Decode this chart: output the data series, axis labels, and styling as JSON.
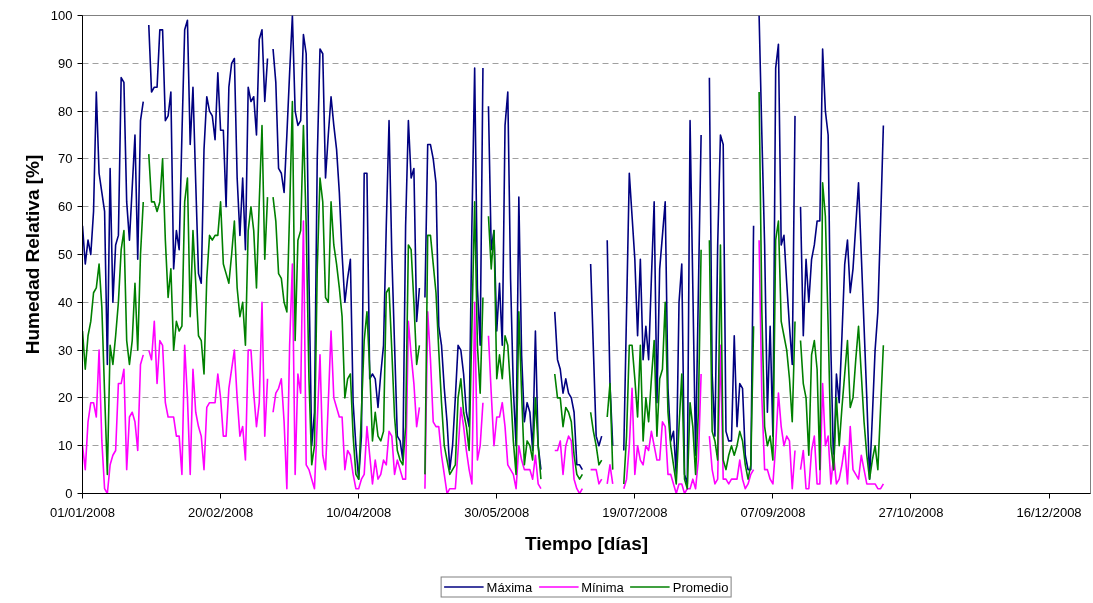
{
  "chart_data": {
    "type": "line",
    "xlabel": "Tiempo [días]",
    "ylabel": "Humedad Relativa [%]",
    "xlim": [
      "2008-01-01",
      "2008-12-31"
    ],
    "ylim": [
      0,
      100
    ],
    "xticks": [
      {
        "value": "2008-01-01",
        "label": "01/01/2008"
      },
      {
        "value": "2008-02-20",
        "label": "20/02/2008"
      },
      {
        "value": "2008-04-10",
        "label": "10/04/2008"
      },
      {
        "value": "2008-05-30",
        "label": "30/05/2008"
      },
      {
        "value": "2008-07-19",
        "label": "19/07/2008"
      },
      {
        "value": "2008-09-07",
        "label": "07/09/2008"
      },
      {
        "value": "2008-10-27",
        "label": "27/10/2008"
      },
      {
        "value": "2008-12-16",
        "label": "16/12/2008"
      }
    ],
    "yticks": [
      0,
      10,
      20,
      30,
      40,
      50,
      60,
      70,
      80,
      90,
      100
    ],
    "grid": "y",
    "legend": "bottom",
    "x": [
      "2008-01-01",
      "2008-01-02",
      "2008-01-03",
      "2008-01-04",
      "2008-01-05",
      "2008-01-06",
      "2008-01-07",
      "2008-01-08",
      "2008-01-09",
      "2008-01-10",
      "2008-01-11",
      "2008-01-12",
      "2008-01-13",
      "2008-01-14",
      "2008-01-15",
      "2008-01-16",
      "2008-01-17",
      "2008-01-18",
      "2008-01-19",
      "2008-01-20",
      "2008-01-21",
      "2008-01-22",
      "2008-01-23",
      "2008-01-24",
      "2008-01-25",
      "2008-01-26",
      "2008-01-27",
      "2008-01-28",
      "2008-01-29",
      "2008-01-30",
      "2008-01-31",
      "2008-02-01",
      "2008-02-02",
      "2008-02-03",
      "2008-02-04",
      "2008-02-05",
      "2008-02-06",
      "2008-02-07",
      "2008-02-08",
      "2008-02-09",
      "2008-02-10",
      "2008-02-11",
      "2008-02-12",
      "2008-02-13",
      "2008-02-14",
      "2008-02-15",
      "2008-02-16",
      "2008-02-17",
      "2008-02-18",
      "2008-02-19",
      "2008-02-20",
      "2008-02-21",
      "2008-02-22",
      "2008-02-23",
      "2008-02-24",
      "2008-02-25",
      "2008-02-26",
      "2008-02-27",
      "2008-02-28",
      "2008-02-29",
      "2008-03-01",
      "2008-03-02",
      "2008-03-03",
      "2008-03-04",
      "2008-03-05",
      "2008-03-06",
      "2008-03-07",
      "2008-03-08",
      "2008-03-09",
      "2008-03-10",
      "2008-03-11",
      "2008-03-12",
      "2008-03-13",
      "2008-03-14",
      "2008-03-15",
      "2008-03-16",
      "2008-03-17",
      "2008-03-18",
      "2008-03-19",
      "2008-03-20",
      "2008-03-21",
      "2008-03-22",
      "2008-03-23",
      "2008-03-24",
      "2008-03-25",
      "2008-03-26",
      "2008-03-27",
      "2008-03-28",
      "2008-03-29",
      "2008-03-30",
      "2008-03-31",
      "2008-04-01",
      "2008-04-02",
      "2008-04-03",
      "2008-04-04",
      "2008-04-05",
      "2008-04-06",
      "2008-04-07",
      "2008-04-08",
      "2008-04-09",
      "2008-04-10",
      "2008-04-11",
      "2008-04-12",
      "2008-04-13",
      "2008-04-14",
      "2008-04-15",
      "2008-04-16",
      "2008-04-17",
      "2008-04-18",
      "2008-04-19",
      "2008-04-20",
      "2008-04-21",
      "2008-04-22",
      "2008-04-23",
      "2008-04-24",
      "2008-04-25",
      "2008-04-26",
      "2008-04-27",
      "2008-04-28",
      "2008-04-29",
      "2008-04-30",
      "2008-05-01",
      "2008-05-02",
      "2008-05-03",
      "2008-05-04",
      "2008-05-05",
      "2008-05-06",
      "2008-05-07",
      "2008-05-08",
      "2008-05-09",
      "2008-05-10",
      "2008-05-11",
      "2008-05-12",
      "2008-05-13",
      "2008-05-14",
      "2008-05-15",
      "2008-05-16",
      "2008-05-17",
      "2008-05-18",
      "2008-05-19",
      "2008-05-20",
      "2008-05-21",
      "2008-05-22",
      "2008-05-23",
      "2008-05-24",
      "2008-05-25",
      "2008-05-26",
      "2008-05-27",
      "2008-05-28",
      "2008-05-29",
      "2008-05-30",
      "2008-05-31",
      "2008-06-01",
      "2008-06-02",
      "2008-06-03",
      "2008-06-04",
      "2008-06-05",
      "2008-06-06",
      "2008-06-07",
      "2008-06-08",
      "2008-06-09",
      "2008-06-10",
      "2008-06-11",
      "2008-06-12",
      "2008-06-13",
      "2008-06-14",
      "2008-06-15",
      "2008-06-16",
      "2008-06-17",
      "2008-06-18",
      "2008-06-19",
      "2008-06-20",
      "2008-06-21",
      "2008-06-22",
      "2008-06-23",
      "2008-06-24",
      "2008-06-25",
      "2008-06-26",
      "2008-06-27",
      "2008-06-28",
      "2008-06-29",
      "2008-06-30",
      "2008-07-01",
      "2008-07-02",
      "2008-07-03",
      "2008-07-04",
      "2008-07-05",
      "2008-07-06",
      "2008-07-07",
      "2008-07-08",
      "2008-07-09",
      "2008-07-10",
      "2008-07-11",
      "2008-07-12",
      "2008-07-13",
      "2008-07-14",
      "2008-07-15",
      "2008-07-16",
      "2008-07-17",
      "2008-07-18",
      "2008-07-19",
      "2008-07-20",
      "2008-07-21",
      "2008-07-22",
      "2008-07-23",
      "2008-07-24",
      "2008-07-25",
      "2008-07-26",
      "2008-07-27",
      "2008-07-28",
      "2008-07-29",
      "2008-07-30",
      "2008-07-31",
      "2008-08-01",
      "2008-08-02",
      "2008-08-03",
      "2008-08-04",
      "2008-08-05",
      "2008-08-06",
      "2008-08-07",
      "2008-08-08",
      "2008-08-09",
      "2008-08-10",
      "2008-08-11",
      "2008-08-12",
      "2008-08-13",
      "2008-08-14",
      "2008-08-15",
      "2008-08-16",
      "2008-08-17",
      "2008-08-18",
      "2008-08-19",
      "2008-08-20",
      "2008-08-21",
      "2008-08-22",
      "2008-08-23",
      "2008-08-24",
      "2008-08-25",
      "2008-08-26",
      "2008-08-27",
      "2008-08-28",
      "2008-08-29",
      "2008-08-30",
      "2008-08-31",
      "2008-09-01",
      "2008-09-02",
      "2008-09-03",
      "2008-09-04",
      "2008-09-05",
      "2008-09-06",
      "2008-09-07",
      "2008-09-08",
      "2008-09-09",
      "2008-09-10",
      "2008-09-11",
      "2008-09-12",
      "2008-09-13",
      "2008-09-14",
      "2008-09-15",
      "2008-09-16",
      "2008-09-17",
      "2008-09-18",
      "2008-09-19",
      "2008-09-20",
      "2008-09-21",
      "2008-09-22",
      "2008-09-23",
      "2008-09-24",
      "2008-09-25",
      "2008-09-26",
      "2008-09-27",
      "2008-09-28",
      "2008-09-29",
      "2008-09-30",
      "2008-10-01",
      "2008-10-02",
      "2008-10-03",
      "2008-10-04",
      "2008-10-05",
      "2008-10-06",
      "2008-10-07",
      "2008-10-08",
      "2008-10-09",
      "2008-10-10",
      "2008-10-11",
      "2008-10-12",
      "2008-10-13",
      "2008-10-14",
      "2008-10-15",
      "2008-10-16",
      "2008-10-17"
    ],
    "series": [
      {
        "name": "Máxima",
        "color": "#000080",
        "values": [
          56,
          48,
          53,
          50,
          59,
          84,
          67,
          63,
          59,
          27,
          68,
          40,
          52,
          54,
          87,
          86,
          61,
          53,
          64,
          75,
          49,
          78,
          82,
          null,
          98,
          84,
          85,
          85,
          97,
          97,
          78,
          79,
          84,
          47,
          55,
          51,
          75,
          97,
          99,
          73,
          85,
          65,
          46,
          44,
          72,
          83,
          80,
          79,
          74,
          88,
          76,
          76,
          60,
          85,
          90,
          91,
          66,
          54,
          66,
          51,
          85,
          82,
          83,
          75,
          95,
          97,
          82,
          91,
          null,
          93,
          86,
          68,
          67,
          63,
          75,
          88,
          100,
          80,
          77,
          78,
          96,
          92,
          45,
          10,
          17,
          70,
          93,
          92,
          66,
          75,
          83,
          77,
          72,
          63,
          50,
          40,
          45,
          49,
          19,
          10,
          3,
          12,
          67,
          67,
          24,
          25,
          24,
          18,
          25,
          31,
          56,
          78,
          50,
          31,
          12,
          11,
          7,
          56,
          78,
          66,
          68,
          36,
          43,
          null,
          41,
          73,
          73,
          70,
          65,
          35,
          31,
          22,
          15,
          5,
          10,
          20,
          31,
          30,
          25,
          17,
          14,
          56,
          89,
          43,
          31,
          89,
          null,
          81,
          51,
          55,
          34,
          44,
          31,
          77,
          84,
          45,
          22,
          10,
          62,
          29,
          15,
          19,
          17,
          9,
          34,
          10,
          5,
          null,
          null,
          null,
          null,
          38,
          28,
          26,
          21,
          24,
          21,
          20,
          17,
          6,
          6,
          5,
          null,
          null,
          48,
          30,
          12,
          10,
          12,
          null,
          53,
          23,
          10,
          null,
          null,
          null,
          9,
          38,
          67,
          58,
          49,
          33,
          49,
          28,
          35,
          28,
          45,
          61,
          19,
          47,
          54,
          61,
          22,
          11,
          13,
          4,
          40,
          48,
          4,
          2,
          78,
          43,
          8,
          42,
          75,
          null,
          null,
          87,
          25,
          12,
          52,
          75,
          73,
          13,
          11,
          11,
          33,
          14,
          23,
          22,
          8,
          5,
          5,
          56,
          null,
          100,
          75,
          52,
          17,
          35,
          12,
          89,
          94,
          52,
          54,
          44,
          35,
          27,
          79,
          null,
          60,
          33,
          49,
          40,
          49,
          52,
          57,
          57,
          93,
          80,
          75,
          30,
          5,
          25,
          19,
          33,
          48,
          53,
          42,
          47,
          56,
          65,
          50,
          35,
          20,
          3,
          16,
          30,
          38,
          57,
          77
        ]
      },
      {
        "name": "Mínima",
        "color": "#ff00ff",
        "values": [
          10,
          5,
          15,
          19,
          19,
          16,
          30,
          11,
          1,
          0,
          6,
          8,
          9,
          23,
          23,
          26,
          5,
          16,
          17,
          15,
          9,
          27,
          29,
          null,
          30,
          28,
          36,
          23,
          32,
          31,
          19,
          16,
          16,
          16,
          12,
          12,
          4,
          31,
          20,
          4,
          26,
          17,
          14,
          12,
          5,
          18,
          19,
          19,
          19,
          25,
          20,
          12,
          12,
          22,
          26,
          30,
          20,
          12,
          14,
          7,
          30,
          30,
          21,
          14,
          19,
          40,
          12,
          24,
          null,
          17,
          21,
          22,
          24,
          15,
          1,
          31,
          48,
          4,
          25,
          21,
          57,
          6,
          5,
          3,
          1,
          15,
          29,
          8,
          5,
          19,
          34,
          20,
          18,
          16,
          16,
          5,
          9,
          8,
          4,
          1,
          1,
          3,
          4,
          14,
          8,
          2,
          7,
          3,
          4,
          7,
          6,
          13,
          12,
          4,
          7,
          5,
          3,
          3,
          36,
          29,
          23,
          14,
          18,
          null,
          1,
          38,
          28,
          15,
          14,
          14,
          8,
          4,
          0,
          1,
          1,
          1,
          9,
          18,
          14,
          9,
          5,
          2,
          40,
          7,
          10,
          19,
          null,
          33,
          21,
          10,
          16,
          16,
          19,
          14,
          6,
          5,
          4,
          1,
          10,
          7,
          5,
          5,
          5,
          3,
          8,
          2,
          1,
          null,
          null,
          null,
          null,
          9,
          9,
          11,
          4,
          10,
          12,
          11,
          3,
          1,
          0,
          1,
          null,
          null,
          5,
          5,
          5,
          2,
          3,
          null,
          2,
          6,
          2,
          null,
          null,
          null,
          1,
          3,
          10,
          22,
          4,
          10,
          7,
          6,
          10,
          9,
          13,
          10,
          7,
          7,
          15,
          14,
          4,
          4,
          2,
          0,
          2,
          2,
          0,
          1,
          1,
          3,
          1,
          7,
          25,
          null,
          null,
          12,
          5,
          2,
          3,
          31,
          3,
          3,
          2,
          3,
          3,
          3,
          7,
          3,
          1,
          2,
          4,
          5,
          null,
          53,
          20,
          5,
          5,
          3,
          2,
          10,
          21,
          14,
          10,
          12,
          11,
          1,
          9,
          null,
          5,
          9,
          1,
          1,
          9,
          12,
          2,
          2,
          23,
          10,
          12,
          2,
          8,
          2,
          3,
          6,
          10,
          2,
          14,
          5,
          4,
          3,
          8,
          5,
          2,
          2,
          2,
          2,
          1,
          1,
          2
        ]
      },
      {
        "name": "Promedio",
        "color": "#008000",
        "values": [
          34,
          26,
          33,
          36,
          42,
          43,
          48,
          39,
          21,
          4,
          31,
          27,
          33,
          40,
          51,
          55,
          32,
          27,
          32,
          44,
          30,
          50,
          61,
          null,
          71,
          61,
          61,
          59,
          61,
          70,
          53,
          41,
          47,
          30,
          36,
          34,
          35,
          61,
          66,
          37,
          55,
          44,
          33,
          32,
          25,
          45,
          54,
          53,
          54,
          54,
          61,
          48,
          46,
          44,
          50,
          57,
          43,
          37,
          40,
          31,
          55,
          60,
          55,
          43,
          61,
          77,
          49,
          62,
          null,
          62,
          57,
          46,
          45,
          40,
          38,
          59,
          82,
          32,
          53,
          55,
          77,
          56,
          24,
          6,
          10,
          47,
          66,
          61,
          41,
          40,
          61,
          52,
          48,
          43,
          37,
          20,
          24,
          25,
          12,
          4,
          3,
          17,
          32,
          38,
          26,
          11,
          17,
          12,
          11,
          13,
          42,
          43,
          30,
          16,
          9,
          7,
          6,
          14,
          52,
          51,
          40,
          27,
          31,
          null,
          4,
          54,
          54,
          48,
          42,
          30,
          19,
          10,
          7,
          4,
          5,
          6,
          20,
          24,
          17,
          14,
          9,
          35,
          61,
          31,
          21,
          41,
          null,
          58,
          47,
          55,
          24,
          29,
          24,
          33,
          31,
          22,
          11,
          4,
          38,
          21,
          6,
          11,
          10,
          7,
          20,
          10,
          3,
          null,
          null,
          null,
          null,
          25,
          20,
          20,
          14,
          18,
          17,
          15,
          8,
          4,
          3,
          4,
          null,
          null,
          17,
          13,
          10,
          6,
          7,
          null,
          16,
          23,
          5,
          null,
          null,
          null,
          2,
          12,
          31,
          31,
          24,
          16,
          31,
          11,
          20,
          15,
          24,
          32,
          12,
          24,
          26,
          40,
          17,
          10,
          6,
          2,
          14,
          25,
          3,
          1,
          19,
          14,
          4,
          17,
          51,
          null,
          null,
          53,
          13,
          11,
          7,
          52,
          7,
          5,
          8,
          10,
          8,
          10,
          13,
          11,
          6,
          3,
          6,
          35,
          null,
          84,
          38,
          14,
          10,
          12,
          7,
          53,
          57,
          36,
          33,
          30,
          24,
          15,
          36,
          null,
          32,
          23,
          20,
          8,
          29,
          32,
          26,
          5,
          65,
          58,
          35,
          10,
          5,
          20,
          10,
          18,
          25,
          32,
          18,
          20,
          28,
          35,
          25,
          15,
          8,
          3,
          7,
          10,
          5,
          18,
          31
        ]
      }
    ]
  }
}
